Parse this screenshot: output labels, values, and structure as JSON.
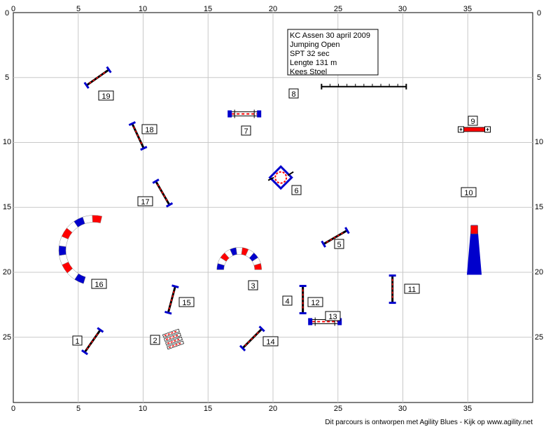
{
  "axes": {
    "x_ticks": [
      0,
      5,
      10,
      15,
      20,
      25,
      30,
      35
    ],
    "y_ticks": [
      0,
      5,
      10,
      15,
      20,
      25
    ],
    "x_range": [
      0,
      40
    ],
    "y_range": [
      0,
      30
    ],
    "grid": true,
    "grid_color": "#c8c8c8",
    "line_color": "#000000"
  },
  "info": {
    "lines": [
      "KC Assen 30 april 2009",
      "Jumping Open",
      "SPT 32 sec",
      "Lengte 131 m",
      "Kees Stoel"
    ]
  },
  "colors": {
    "red": "#ff0000",
    "blue": "#0000cc",
    "white": "#ffffff",
    "black": "#000000"
  },
  "obstacles": [
    {
      "number": "1",
      "type": "jump",
      "x": 6.1,
      "y": 25.3,
      "angle": -55,
      "length": 2.1
    },
    {
      "number": "2",
      "type": "long-jump",
      "x": 12.3,
      "y": 25.1,
      "angle": -20
    },
    {
      "number": "3",
      "type": "tunnel",
      "x": 17.4,
      "y": 19.8,
      "angle": 0,
      "open": "down"
    },
    {
      "number": "4",
      "type": "number-only"
    },
    {
      "number": "5",
      "type": "jump",
      "x": 24.8,
      "y": 17.3,
      "angle": -30,
      "length": 2.1
    },
    {
      "number": "6",
      "type": "tire",
      "x": 20.6,
      "y": 12.7
    },
    {
      "number": "7",
      "type": "wall",
      "x": 17.8,
      "y": 7.8,
      "angle": 0
    },
    {
      "number": "8",
      "type": "dogwalk",
      "x": 27,
      "y": 5.7,
      "angle": 0
    },
    {
      "number": "9",
      "type": "table",
      "x": 35.5,
      "y": 9.0
    },
    {
      "number": "10",
      "type": "seesaw",
      "x": 35.5,
      "y": 17.2
    },
    {
      "number": "11",
      "type": "jump",
      "x": 29.2,
      "y": 21.3,
      "angle": 90,
      "length": 2.1
    },
    {
      "number": "12",
      "type": "jump",
      "x": 22.3,
      "y": 22.1,
      "angle": 90,
      "length": 2.1
    },
    {
      "number": "13",
      "type": "wall",
      "x": 24,
      "y": 23.8,
      "angle": 0
    },
    {
      "number": "14",
      "type": "jump",
      "x": 18.4,
      "y": 25.1,
      "angle": -45,
      "length": 2.1
    },
    {
      "number": "15",
      "type": "jump",
      "x": 12.2,
      "y": 22.1,
      "angle": -75,
      "length": 2.1
    },
    {
      "number": "16",
      "type": "tunnel",
      "x": 6.2,
      "y": 18.3,
      "angle": 90,
      "open": "right"
    },
    {
      "number": "17",
      "type": "jump",
      "x": 11.5,
      "y": 13.9,
      "angle": 60,
      "length": 2.1
    },
    {
      "number": "18",
      "type": "jump",
      "x": 9.6,
      "y": 9.5,
      "angle": 65,
      "length": 2.1
    },
    {
      "number": "19",
      "type": "jump",
      "x": 6.5,
      "y": 5.0,
      "angle": -35,
      "length": 2.1
    }
  ],
  "footer": "Dit parcours is ontworpen met Agility Blues - Kijk op www.agility.net"
}
